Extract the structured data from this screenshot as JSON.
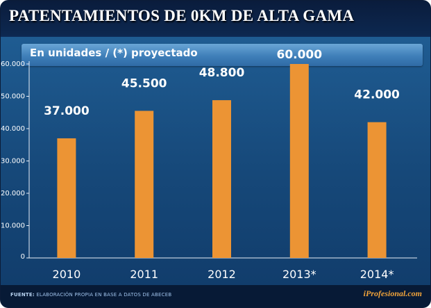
{
  "title": "PATENTAMIENTOS DE 0KM DE ALTA GAMA",
  "subtitle": "En unidades / (*) proyectado",
  "footer": {
    "source_label": "FUENTE:",
    "source_text": "ELABORACIÓN PROPIA EN BASE A DATOS DE ABECEB",
    "brand": "iProfesional.com"
  },
  "colors": {
    "bar": "#ec9434",
    "background": "#16497a",
    "header": "#0a1d3d"
  },
  "chart_data": {
    "type": "bar",
    "title": "PATENTAMIENTOS DE 0KM DE ALTA GAMA",
    "subtitle": "En unidades / (*) proyectado",
    "categories": [
      "2010",
      "2011",
      "2012",
      "2013*",
      "2014*"
    ],
    "values": [
      37000,
      45500,
      48800,
      60000,
      42000
    ],
    "data_labels": [
      "37.000",
      "45.500",
      "48.800",
      "60.000",
      "42.000"
    ],
    "yticks": [
      "0",
      "10.000",
      "20.000",
      "30.000",
      "40.000",
      "50.000",
      "60.000"
    ],
    "ylim": [
      0,
      60000
    ],
    "xlabel": "",
    "ylabel": "",
    "grid": false,
    "legend": "none"
  }
}
